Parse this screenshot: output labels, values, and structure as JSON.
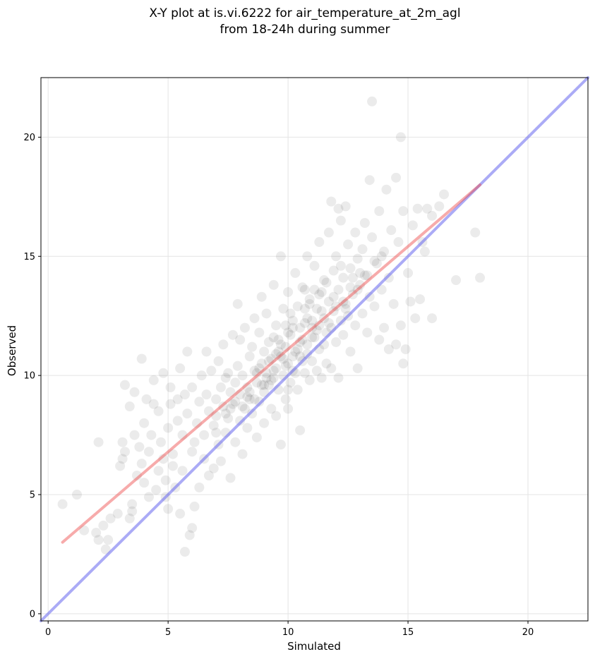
{
  "chart_data": {
    "type": "scatter",
    "title_lines": [
      "X-Y plot at is.vi.6222 for air_temperature_at_2m_agl",
      "from 18-24h during summer"
    ],
    "xlabel": "Simulated",
    "ylabel": "Observed",
    "xlim": [
      -0.3,
      22.5
    ],
    "ylim": [
      -0.3,
      22.5
    ],
    "xticks": [
      0,
      5,
      10,
      15,
      20
    ],
    "yticks": [
      0,
      5,
      10,
      15,
      20
    ],
    "grid": true,
    "point_color": "#000000",
    "point_alpha": 0.08,
    "lines": [
      {
        "color": "#6666ee",
        "alpha": 0.55,
        "x": [
          -0.3,
          22.5
        ],
        "y": [
          -0.3,
          22.5
        ]
      },
      {
        "color": "#ee4444",
        "alpha": 0.45,
        "x": [
          0.6,
          18.0
        ],
        "y": [
          3.0,
          18.0
        ]
      }
    ],
    "points": [
      [
        0.6,
        4.6
      ],
      [
        1.2,
        5.0
      ],
      [
        1.5,
        3.5
      ],
      [
        2.0,
        3.4
      ],
      [
        2.1,
        3.1
      ],
      [
        2.1,
        7.2
      ],
      [
        2.3,
        3.7
      ],
      [
        2.4,
        2.7
      ],
      [
        2.5,
        3.1
      ],
      [
        2.6,
        4.0
      ],
      [
        2.9,
        4.2
      ],
      [
        3.0,
        6.2
      ],
      [
        3.1,
        6.5
      ],
      [
        3.1,
        7.2
      ],
      [
        3.2,
        9.6
      ],
      [
        3.2,
        6.8
      ],
      [
        3.4,
        4.0
      ],
      [
        3.4,
        8.7
      ],
      [
        3.5,
        4.3
      ],
      [
        3.5,
        4.6
      ],
      [
        3.6,
        7.5
      ],
      [
        3.6,
        9.3
      ],
      [
        3.7,
        5.8
      ],
      [
        3.8,
        7.0
      ],
      [
        3.9,
        10.7
      ],
      [
        3.9,
        6.3
      ],
      [
        4.0,
        5.5
      ],
      [
        4.0,
        8.0
      ],
      [
        4.1,
        9.0
      ],
      [
        4.2,
        4.9
      ],
      [
        4.2,
        6.8
      ],
      [
        4.3,
        7.5
      ],
      [
        4.4,
        8.8
      ],
      [
        4.4,
        9.8
      ],
      [
        4.5,
        5.2
      ],
      [
        4.6,
        6.0
      ],
      [
        4.6,
        8.5
      ],
      [
        4.7,
        7.2
      ],
      [
        4.8,
        10.1
      ],
      [
        4.8,
        6.5
      ],
      [
        4.9,
        4.9
      ],
      [
        4.9,
        5.6
      ],
      [
        5.0,
        4.4
      ],
      [
        5.0,
        7.8
      ],
      [
        5.1,
        8.8
      ],
      [
        5.1,
        9.5
      ],
      [
        5.2,
        6.7
      ],
      [
        5.2,
        6.2
      ],
      [
        5.3,
        5.3
      ],
      [
        5.4,
        9.0
      ],
      [
        5.4,
        8.1
      ],
      [
        5.5,
        10.3
      ],
      [
        5.5,
        4.2
      ],
      [
        5.6,
        6.0
      ],
      [
        5.6,
        7.5
      ],
      [
        5.7,
        9.2
      ],
      [
        5.7,
        2.6
      ],
      [
        5.8,
        8.4
      ],
      [
        5.8,
        11.0
      ],
      [
        5.9,
        3.3
      ],
      [
        6.0,
        3.6
      ],
      [
        6.0,
        6.8
      ],
      [
        6.0,
        9.5
      ],
      [
        6.1,
        4.5
      ],
      [
        6.1,
        7.2
      ],
      [
        6.2,
        8.0
      ],
      [
        6.3,
        5.3
      ],
      [
        6.3,
        8.9
      ],
      [
        6.4,
        10.0
      ],
      [
        6.5,
        7.5
      ],
      [
        6.5,
        6.5
      ],
      [
        6.6,
        9.2
      ],
      [
        6.6,
        11.0
      ],
      [
        6.7,
        8.5
      ],
      [
        6.7,
        5.8
      ],
      [
        6.8,
        10.2
      ],
      [
        6.9,
        7.9
      ],
      [
        6.9,
        6.1
      ],
      [
        7.0,
        9.0
      ],
      [
        7.0,
        8.3
      ],
      [
        7.1,
        10.6
      ],
      [
        7.1,
        7.1
      ],
      [
        7.2,
        9.5
      ],
      [
        7.2,
        6.4
      ],
      [
        7.3,
        8.7
      ],
      [
        7.3,
        11.3
      ],
      [
        7.4,
        9.9
      ],
      [
        7.4,
        7.6
      ],
      [
        7.5,
        8.2
      ],
      [
        7.5,
        10.1
      ],
      [
        7.6,
        9.3
      ],
      [
        7.6,
        5.7
      ],
      [
        7.7,
        11.7
      ],
      [
        7.7,
        8.8
      ],
      [
        7.8,
        7.2
      ],
      [
        7.8,
        9.7
      ],
      [
        7.9,
        13.0
      ],
      [
        7.9,
        10.4
      ],
      [
        8.0,
        8.1
      ],
      [
        8.0,
        9.2
      ],
      [
        8.0,
        11.5
      ],
      [
        8.1,
        6.7
      ],
      [
        8.1,
        10.0
      ],
      [
        8.2,
        8.6
      ],
      [
        8.2,
        12.0
      ],
      [
        8.3,
        9.5
      ],
      [
        8.3,
        7.8
      ],
      [
        8.4,
        10.8
      ],
      [
        8.4,
        9.0
      ],
      [
        8.5,
        11.2
      ],
      [
        8.5,
        8.4
      ],
      [
        8.6,
        12.4
      ],
      [
        8.6,
        10.2
      ],
      [
        8.7,
        7.4
      ],
      [
        8.7,
        9.7
      ],
      [
        8.8,
        11.8
      ],
      [
        8.8,
        8.9
      ],
      [
        8.9,
        10.5
      ],
      [
        8.9,
        13.3
      ],
      [
        9.0,
        9.3
      ],
      [
        9.0,
        11.0
      ],
      [
        9.0,
        8.0
      ],
      [
        9.1,
        10.1
      ],
      [
        9.1,
        12.6
      ],
      [
        9.2,
        9.6
      ],
      [
        9.2,
        11.4
      ],
      [
        9.3,
        8.6
      ],
      [
        9.3,
        10.7
      ],
      [
        9.4,
        13.8
      ],
      [
        9.4,
        9.9
      ],
      [
        9.5,
        12.1
      ],
      [
        9.5,
        10.3
      ],
      [
        9.5,
        8.3
      ],
      [
        9.6,
        11.5
      ],
      [
        9.6,
        9.4
      ],
      [
        9.7,
        10.8
      ],
      [
        9.7,
        15.0
      ],
      [
        9.7,
        7.1
      ],
      [
        9.8,
        12.8
      ],
      [
        9.8,
        10.0
      ],
      [
        9.9,
        11.2
      ],
      [
        9.9,
        9.0
      ],
      [
        10.0,
        10.5
      ],
      [
        10.0,
        13.5
      ],
      [
        10.0,
        8.6
      ],
      [
        10.1,
        11.7
      ],
      [
        10.1,
        9.7
      ],
      [
        10.2,
        12.3
      ],
      [
        10.2,
        10.2
      ],
      [
        10.3,
        11.0
      ],
      [
        10.3,
        14.3
      ],
      [
        10.4,
        9.4
      ],
      [
        10.4,
        12.9
      ],
      [
        10.5,
        10.8
      ],
      [
        10.5,
        7.7
      ],
      [
        10.6,
        11.5
      ],
      [
        10.6,
        13.7
      ],
      [
        10.7,
        10.1
      ],
      [
        10.7,
        12.2
      ],
      [
        10.8,
        15.0
      ],
      [
        10.8,
        11.3
      ],
      [
        10.9,
        9.8
      ],
      [
        10.9,
        13.2
      ],
      [
        11.0,
        12.0
      ],
      [
        11.0,
        10.6
      ],
      [
        11.1,
        14.6
      ],
      [
        11.1,
        11.6
      ],
      [
        11.2,
        10.2
      ],
      [
        11.2,
        12.8
      ],
      [
        11.3,
        15.6
      ],
      [
        11.3,
        11.1
      ],
      [
        11.4,
        13.5
      ],
      [
        11.4,
        9.9
      ],
      [
        11.5,
        12.4
      ],
      [
        11.5,
        14.0
      ],
      [
        11.6,
        11.8
      ],
      [
        11.6,
        10.5
      ],
      [
        11.7,
        13.1
      ],
      [
        11.7,
        16.0
      ],
      [
        11.8,
        12.0
      ],
      [
        11.8,
        10.3
      ],
      [
        11.9,
        14.4
      ],
      [
        11.9,
        12.7
      ],
      [
        12.0,
        11.4
      ],
      [
        12.0,
        15.0
      ],
      [
        12.1,
        13.6
      ],
      [
        12.1,
        9.9
      ],
      [
        12.2,
        12.3
      ],
      [
        12.2,
        16.5
      ],
      [
        12.3,
        14.1
      ],
      [
        12.3,
        11.7
      ],
      [
        12.4,
        13.0
      ],
      [
        12.4,
        17.1
      ],
      [
        12.5,
        12.5
      ],
      [
        12.5,
        15.5
      ],
      [
        12.6,
        11.0
      ],
      [
        12.6,
        14.5
      ],
      [
        12.7,
        13.4
      ],
      [
        12.8,
        16.0
      ],
      [
        12.8,
        12.1
      ],
      [
        12.9,
        14.9
      ],
      [
        12.9,
        10.3
      ],
      [
        13.0,
        13.8
      ],
      [
        13.1,
        15.3
      ],
      [
        13.1,
        12.6
      ],
      [
        13.2,
        16.4
      ],
      [
        13.3,
        14.2
      ],
      [
        13.3,
        11.8
      ],
      [
        13.4,
        18.2
      ],
      [
        13.4,
        13.3
      ],
      [
        13.5,
        21.5
      ],
      [
        13.5,
        15.8
      ],
      [
        13.6,
        12.9
      ],
      [
        13.7,
        14.7
      ],
      [
        13.8,
        16.9
      ],
      [
        13.8,
        11.5
      ],
      [
        13.9,
        13.6
      ],
      [
        14.0,
        15.2
      ],
      [
        14.0,
        12.0
      ],
      [
        14.1,
        17.8
      ],
      [
        14.2,
        14.1
      ],
      [
        14.2,
        11.1
      ],
      [
        14.3,
        16.1
      ],
      [
        14.4,
        13.0
      ],
      [
        14.5,
        18.3
      ],
      [
        14.5,
        11.3
      ],
      [
        14.6,
        15.6
      ],
      [
        14.7,
        12.1
      ],
      [
        14.8,
        10.5
      ],
      [
        14.8,
        16.9
      ],
      [
        14.9,
        11.1
      ],
      [
        15.0,
        14.3
      ],
      [
        15.1,
        13.1
      ],
      [
        15.2,
        16.3
      ],
      [
        15.3,
        12.4
      ],
      [
        15.4,
        17.0
      ],
      [
        15.5,
        13.2
      ],
      [
        15.6,
        15.6
      ],
      [
        15.7,
        15.2
      ],
      [
        15.8,
        17.0
      ],
      [
        16.0,
        16.7
      ],
      [
        16.0,
        12.4
      ],
      [
        16.3,
        17.1
      ],
      [
        16.5,
        17.6
      ],
      [
        17.0,
        14.0
      ],
      [
        17.8,
        16.0
      ],
      [
        18.0,
        14.1
      ],
      [
        14.7,
        20.0
      ],
      [
        12.1,
        17.0
      ],
      [
        11.8,
        17.3
      ],
      [
        10.7,
        13.6
      ],
      [
        10.2,
        12.0
      ],
      [
        9.6,
        11.0
      ],
      [
        9.2,
        10.6
      ],
      [
        10.5,
        11.4
      ],
      [
        10.0,
        11.8
      ],
      [
        11.0,
        11.6
      ],
      [
        10.3,
        10.1
      ],
      [
        9.8,
        10.7
      ],
      [
        10.8,
        12.4
      ],
      [
        11.2,
        11.9
      ],
      [
        9.4,
        10.2
      ],
      [
        10.1,
        12.6
      ],
      [
        11.5,
        11.3
      ],
      [
        10.6,
        10.6
      ],
      [
        9.9,
        10.4
      ],
      [
        11.4,
        12.7
      ],
      [
        10.9,
        13.0
      ],
      [
        9.3,
        9.8
      ],
      [
        10.4,
        11.1
      ],
      [
        11.7,
        12.2
      ],
      [
        12.0,
        12.9
      ],
      [
        8.9,
        9.6
      ],
      [
        9.7,
        11.3
      ],
      [
        10.8,
        10.9
      ],
      [
        11.3,
        13.4
      ],
      [
        12.3,
        13.1
      ],
      [
        8.7,
        10.1
      ],
      [
        9.5,
        10.9
      ],
      [
        11.6,
        13.9
      ],
      [
        12.6,
        13.7
      ],
      [
        8.4,
        9.3
      ],
      [
        9.1,
        9.9
      ],
      [
        10.2,
        10.8
      ],
      [
        11.0,
        12.3
      ],
      [
        12.2,
        14.6
      ],
      [
        12.9,
        13.6
      ],
      [
        13.2,
        14.2
      ],
      [
        7.8,
        8.9
      ],
      [
        8.6,
        9.0
      ],
      [
        9.9,
        12.1
      ],
      [
        10.7,
        12.8
      ],
      [
        11.1,
        13.6
      ],
      [
        11.9,
        13.3
      ],
      [
        12.7,
        14.1
      ],
      [
        13.6,
        14.8
      ],
      [
        7.4,
        8.4
      ],
      [
        8.1,
        8.7
      ],
      [
        8.8,
        10.3
      ],
      [
        9.4,
        11.6
      ],
      [
        10.0,
        9.4
      ],
      [
        10.5,
        12.0
      ],
      [
        11.3,
        12.1
      ],
      [
        12.4,
        12.8
      ],
      [
        13.0,
        14.3
      ],
      [
        13.9,
        15.0
      ],
      [
        7.0,
        7.6
      ],
      [
        7.6,
        8.6
      ],
      [
        8.3,
        9.1
      ],
      [
        9.0,
        9.6
      ]
    ]
  }
}
